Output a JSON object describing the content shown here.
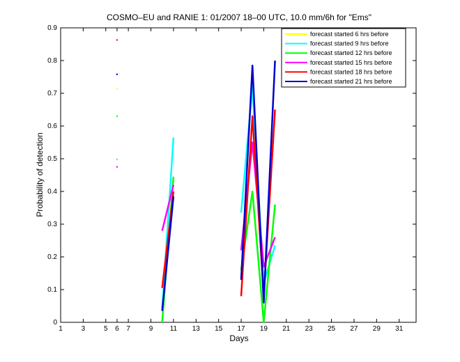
{
  "chart_data": {
    "type": "line",
    "title": "COSMO–EU and RANIE 1: 01/2007 18–00 UTC, 10.0 mm/6h for \"Ems\"",
    "xlabel": "Days",
    "ylabel": "Probability of detection",
    "xlim": [
      1,
      32.5
    ],
    "ylim": [
      0,
      0.9
    ],
    "xticks": [
      1,
      3,
      5,
      6,
      7,
      9,
      11,
      13,
      15,
      17,
      19,
      21,
      23,
      25,
      27,
      29,
      31
    ],
    "yticks": [
      0,
      0.1,
      0.2,
      0.3,
      0.4,
      0.5,
      0.6,
      0.7,
      0.8,
      0.9
    ],
    "grid": false,
    "legend_position": "top-right",
    "series": [
      {
        "name": "forecast started 6 hrs before",
        "color": "#ffff00",
        "segments": [
          [
            [
              6,
              0.713
            ]
          ]
        ]
      },
      {
        "name": "forecast started 9 hrs before",
        "color": "#00ffff",
        "segments": [
          [
            [
              6,
              0.498
            ]
          ],
          [
            [
              10,
              0.04
            ],
            [
              11,
              0.565
            ]
          ],
          [
            [
              17,
              0.335
            ],
            [
              18,
              0.72
            ],
            [
              19,
              0.12
            ],
            [
              20,
              0.235
            ]
          ]
        ]
      },
      {
        "name": "forecast started 12 hrs before",
        "color": "#00ff00",
        "segments": [
          [
            [
              6,
              0.63
            ]
          ],
          [
            [
              10,
              0.0
            ],
            [
              11,
              0.445
            ]
          ],
          [
            [
              17,
              0.16
            ],
            [
              18,
              0.4
            ],
            [
              19,
              0.0
            ],
            [
              20,
              0.36
            ]
          ]
        ]
      },
      {
        "name": "forecast started 15 hrs before",
        "color": "#ff00ff",
        "segments": [
          [
            [
              6,
              0.475
            ]
          ],
          [
            [
              10,
              0.28
            ],
            [
              11,
              0.42
            ]
          ],
          [
            [
              17,
              0.22
            ],
            [
              18,
              0.55
            ],
            [
              19,
              0.17
            ],
            [
              20,
              0.26
            ]
          ]
        ]
      },
      {
        "name": "forecast started 18 hrs before",
        "color": "#ff0000",
        "segments": [
          [
            [
              6,
              0.863
            ]
          ],
          [
            [
              10,
              0.105
            ],
            [
              11,
              0.4
            ]
          ],
          [
            [
              17,
              0.08
            ],
            [
              18,
              0.63
            ],
            [
              19,
              0.08
            ],
            [
              20,
              0.65
            ]
          ]
        ]
      },
      {
        "name": "forecast started 21 hrs before",
        "color": "#0000cc",
        "segments": [
          [
            [
              6,
              0.758
            ]
          ],
          [
            [
              10,
              0.035
            ],
            [
              11,
              0.385
            ]
          ],
          [
            [
              17,
              0.13
            ],
            [
              18,
              0.785
            ],
            [
              19,
              0.06
            ],
            [
              20,
              0.8
            ]
          ]
        ]
      }
    ]
  }
}
